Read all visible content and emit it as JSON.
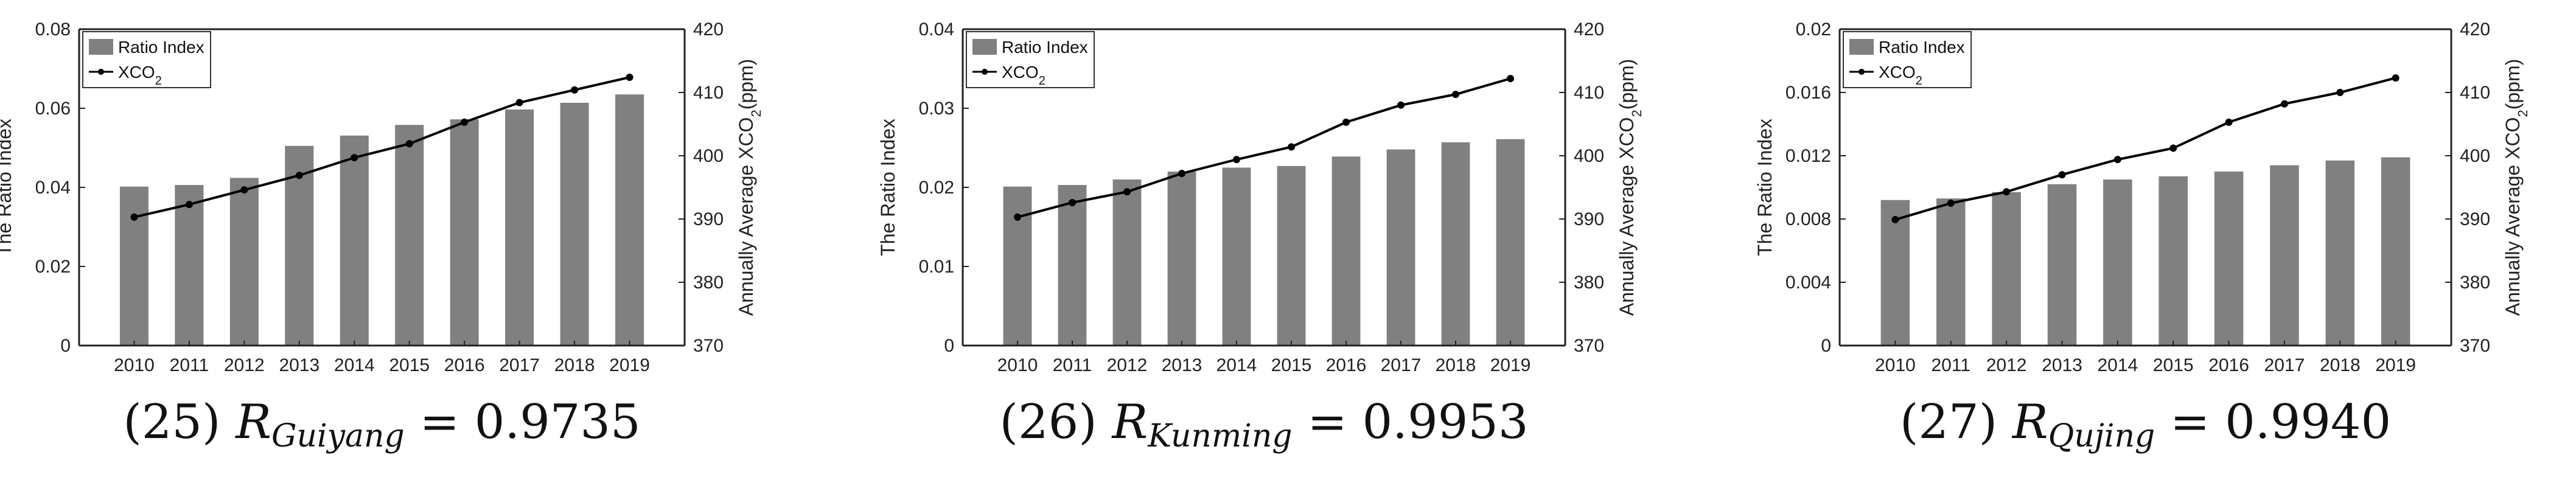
{
  "colors": {
    "bar": "#808080",
    "line": "#000000",
    "axis": "#222222"
  },
  "legend": {
    "bar_label": "Ratio Index",
    "line_label": "XCO",
    "line_label_sub": "2"
  },
  "chart_data": [
    {
      "type": "bar",
      "categories": [
        "2010",
        "2011",
        "2012",
        "2013",
        "2014",
        "2015",
        "2016",
        "2017",
        "2018",
        "2019"
      ],
      "series": [
        {
          "name": "Ratio Index",
          "type": "bar",
          "axis": "left",
          "values": [
            0.0402,
            0.0406,
            0.0424,
            0.0505,
            0.0531,
            0.0558,
            0.0572,
            0.0597,
            0.0614,
            0.0635
          ]
        },
        {
          "name": "XCO2",
          "type": "line",
          "axis": "right",
          "values": [
            390.3,
            392.3,
            394.6,
            396.9,
            399.7,
            401.9,
            405.3,
            408.4,
            410.4,
            412.4
          ]
        }
      ],
      "ylabel": "The Ratio Index",
      "y2label": "Annually Average XCO2(ppm)",
      "ylim": [
        0,
        0.08
      ],
      "y2lim": [
        370,
        420
      ],
      "yticks": [
        "0",
        "0.02",
        "0.04",
        "0.06",
        "0.08"
      ],
      "y2ticks": [
        "370",
        "380",
        "390",
        "400",
        "410",
        "420"
      ],
      "legend_position": "top-left",
      "caption": {
        "number": "(25)",
        "var": "R",
        "sub": "Guiyang",
        "value": "= 0.9735"
      }
    },
    {
      "type": "bar",
      "categories": [
        "2010",
        "2011",
        "2012",
        "2013",
        "2014",
        "2015",
        "2016",
        "2017",
        "2018",
        "2019"
      ],
      "series": [
        {
          "name": "Ratio Index",
          "type": "bar",
          "axis": "left",
          "values": [
            0.0201,
            0.0203,
            0.021,
            0.022,
            0.0225,
            0.0227,
            0.0239,
            0.0248,
            0.0257,
            0.0261
          ]
        },
        {
          "name": "XCO2",
          "type": "line",
          "axis": "right",
          "values": [
            390.3,
            392.6,
            394.3,
            397.2,
            399.4,
            401.4,
            405.3,
            408.0,
            409.7,
            412.2
          ]
        }
      ],
      "ylabel": "The Ratio Index",
      "y2label": "Annually Average XCO2(ppm)",
      "ylim": [
        0,
        0.04
      ],
      "y2lim": [
        370,
        420
      ],
      "yticks": [
        "0",
        "0.01",
        "0.02",
        "0.03",
        "0.04"
      ],
      "y2ticks": [
        "370",
        "380",
        "390",
        "400",
        "410",
        "420"
      ],
      "legend_position": "top-left",
      "caption": {
        "number": "(26)",
        "var": "R",
        "sub": "Kunming",
        "value": "= 0.9953"
      }
    },
    {
      "type": "bar",
      "categories": [
        "2010",
        "2011",
        "2012",
        "2013",
        "2014",
        "2015",
        "2016",
        "2017",
        "2018",
        "2019"
      ],
      "series": [
        {
          "name": "Ratio Index",
          "type": "bar",
          "axis": "left",
          "values": [
            0.0092,
            0.0093,
            0.0097,
            0.0102,
            0.0105,
            0.0107,
            0.011,
            0.0114,
            0.0117,
            0.0119
          ]
        },
        {
          "name": "XCO2",
          "type": "line",
          "axis": "right",
          "values": [
            389.9,
            392.5,
            394.3,
            397.0,
            399.4,
            401.2,
            405.3,
            408.2,
            410.0,
            412.3
          ]
        }
      ],
      "ylabel": "The Ratio Index",
      "y2label": "Annually Average XCO2(ppm)",
      "ylim": [
        0,
        0.02
      ],
      "y2lim": [
        370,
        420
      ],
      "yticks": [
        "0",
        "0.004",
        "0.008",
        "0.012",
        "0.016",
        "0.02"
      ],
      "y2ticks": [
        "370",
        "380",
        "390",
        "400",
        "410",
        "420"
      ],
      "legend_position": "top-left",
      "caption": {
        "number": "(27)",
        "var": "R",
        "sub": "Qujing",
        "value": "= 0.9940"
      }
    }
  ]
}
